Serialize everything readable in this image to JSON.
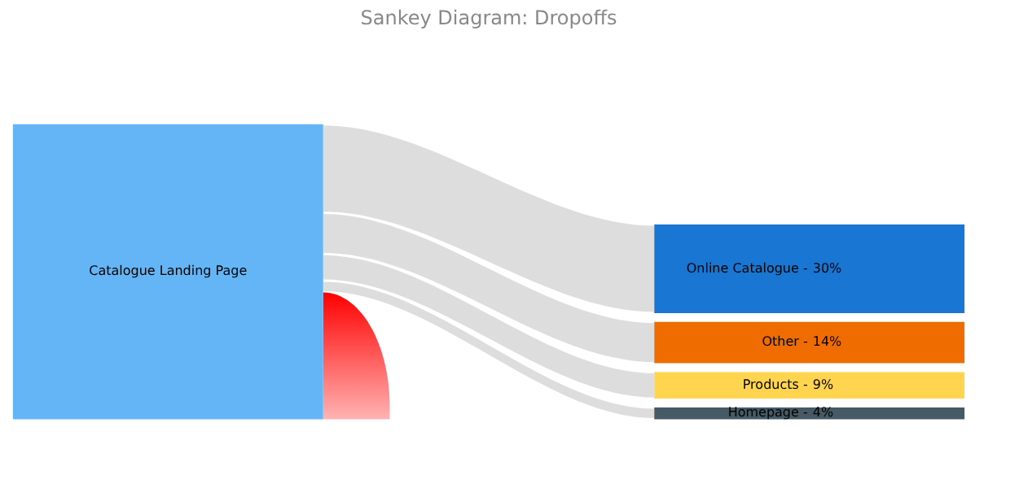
{
  "chart_data": {
    "type": "other",
    "title": "Sankey Diagram: Dropoffs",
    "categories": [
      "Online Catalogue -",
      "Other -",
      "Products -",
      "Homepage -"
    ],
    "values": [
      30,
      14,
      9,
      4
    ],
    "colors": [
      "#1976d2",
      "#ef6c00",
      "#ffd54f",
      "#455a64"
    ],
    "value_labels": [
      "30%",
      "14%",
      "9%",
      "4%"
    ],
    "annotations": [
      "Catalogue Landing Page"
    ]
  }
}
